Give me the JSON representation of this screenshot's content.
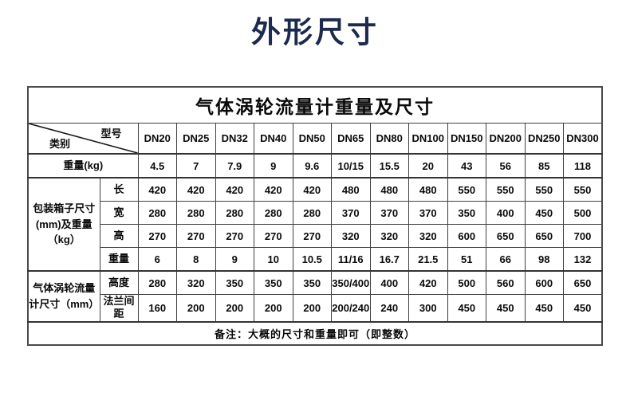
{
  "page_title": "外形尺寸",
  "table": {
    "title": "气体涡轮流量计重量及尺寸",
    "corner": {
      "top_right": "型号",
      "bottom_left": "类别"
    },
    "columns": [
      "DN20",
      "DN25",
      "DN32",
      "DN40",
      "DN50",
      "DN65",
      "DN80",
      "DN100",
      "DN150",
      "DN200",
      "DN250",
      "DN300"
    ],
    "sections": [
      {
        "group_label": null,
        "rows": [
          {
            "label": "重量(kg)",
            "label_span": 2,
            "values": [
              "4.5",
              "7",
              "7.9",
              "9",
              "9.6",
              "10/15",
              "15.5",
              "20",
              "43",
              "56",
              "85",
              "118"
            ]
          }
        ]
      },
      {
        "group_label": "包装箱子尺寸(mm)及重量（kg）",
        "rows": [
          {
            "label": "长",
            "values": [
              "420",
              "420",
              "420",
              "420",
              "420",
              "480",
              "480",
              "480",
              "550",
              "550",
              "550",
              "550"
            ]
          },
          {
            "label": "宽",
            "values": [
              "280",
              "280",
              "280",
              "280",
              "280",
              "370",
              "370",
              "370",
              "350",
              "400",
              "450",
              "500"
            ]
          },
          {
            "label": "高",
            "values": [
              "270",
              "270",
              "270",
              "270",
              "270",
              "320",
              "320",
              "320",
              "600",
              "650",
              "650",
              "700"
            ]
          },
          {
            "label": "重量",
            "values": [
              "6",
              "8",
              "9",
              "10",
              "10.5",
              "11/16",
              "16.7",
              "21.5",
              "51",
              "66",
              "98",
              "132"
            ]
          }
        ]
      },
      {
        "group_label": "气体涡轮流量计尺寸（mm）",
        "rows": [
          {
            "label": "高度",
            "values": [
              "280",
              "320",
              "350",
              "350",
              "350",
              "350/400",
              "400",
              "420",
              "500",
              "560",
              "600",
              "650"
            ]
          },
          {
            "label": "法兰间距",
            "values": [
              "160",
              "200",
              "200",
              "200",
              "200",
              "200/240",
              "240",
              "300",
              "450",
              "450",
              "450",
              "450"
            ]
          }
        ]
      }
    ],
    "note": "备注：大概的尺寸和重量即可（即整数）"
  }
}
